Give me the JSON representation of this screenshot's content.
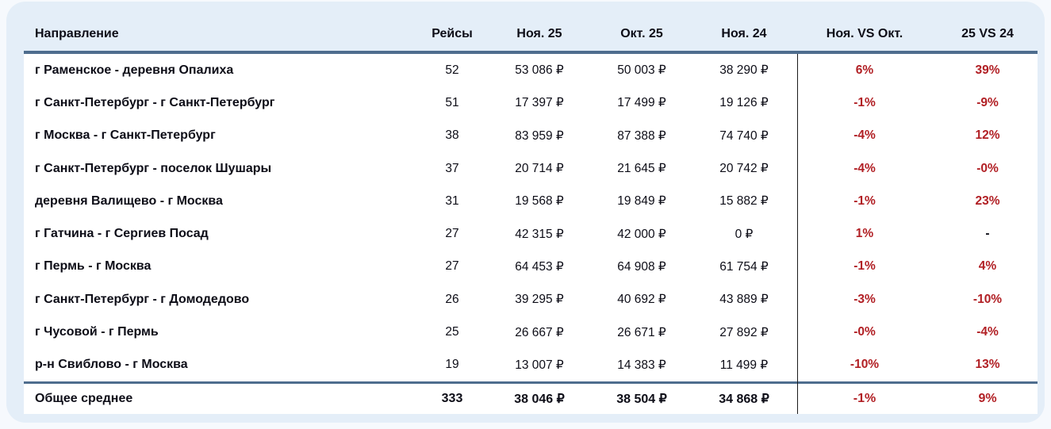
{
  "chart_data": {
    "type": "table",
    "title": "",
    "columns": [
      "Направление",
      "Рейсы",
      "Ноя. 25",
      "Окт. 25",
      "Ноя. 24",
      "Ноя. VS Окт.",
      "25 VS 24"
    ],
    "rows": [
      [
        "г Раменское - деревня Опалиха",
        "52",
        "53 086 ₽",
        "50 003 ₽",
        "38 290 ₽",
        "6%",
        "39%"
      ],
      [
        "г Санкт-Петербург - г Санкт-Петербург",
        "51",
        "17 397 ₽",
        "17 499 ₽",
        "19 126 ₽",
        "-1%",
        "-9%"
      ],
      [
        "г Москва - г Санкт-Петербург",
        "38",
        "83 959 ₽",
        "87 388 ₽",
        "74 740 ₽",
        "-4%",
        "12%"
      ],
      [
        "г Санкт-Петербург - поселок Шушары",
        "37",
        "20 714 ₽",
        "21 645 ₽",
        "20 742 ₽",
        "-4%",
        "-0%"
      ],
      [
        "деревня Валищево - г Москва",
        "31",
        "19 568 ₽",
        "19 849 ₽",
        "15 882 ₽",
        "-1%",
        "23%"
      ],
      [
        "г Гатчина - г Сергиев Посад",
        "27",
        "42 315 ₽",
        "42 000 ₽",
        "0 ₽",
        "1%",
        "-"
      ],
      [
        "г Пермь - г Москва",
        "27",
        "64 453 ₽",
        "64 908 ₽",
        "61 754 ₽",
        "-1%",
        "4%"
      ],
      [
        "г Санкт-Петербург - г Домодедово",
        "26",
        "39 295 ₽",
        "40 692 ₽",
        "43 889 ₽",
        "-3%",
        "-10%"
      ],
      [
        "г Чусовой - г Пермь",
        "25",
        "26 667 ₽",
        "26 671 ₽",
        "27 892 ₽",
        "-0%",
        "-4%"
      ],
      [
        "р-н Свиблово - г Москва",
        "19",
        "13 007 ₽",
        "14 383 ₽",
        "11 499 ₽",
        "-10%",
        "13%"
      ]
    ],
    "total_row": [
      "Общее среднее",
      "333",
      "38 046 ₽",
      "38 504 ₽",
      "34 868 ₽",
      "-1%",
      "9%"
    ]
  },
  "colors": {
    "accent_border": "#4e6d8e",
    "percent_red": "#b11f24",
    "text_dark": "#0d0d17",
    "card_blue": "#e4eef8",
    "table_white": "#ffffff",
    "divider_black": "#1a1a1a"
  }
}
